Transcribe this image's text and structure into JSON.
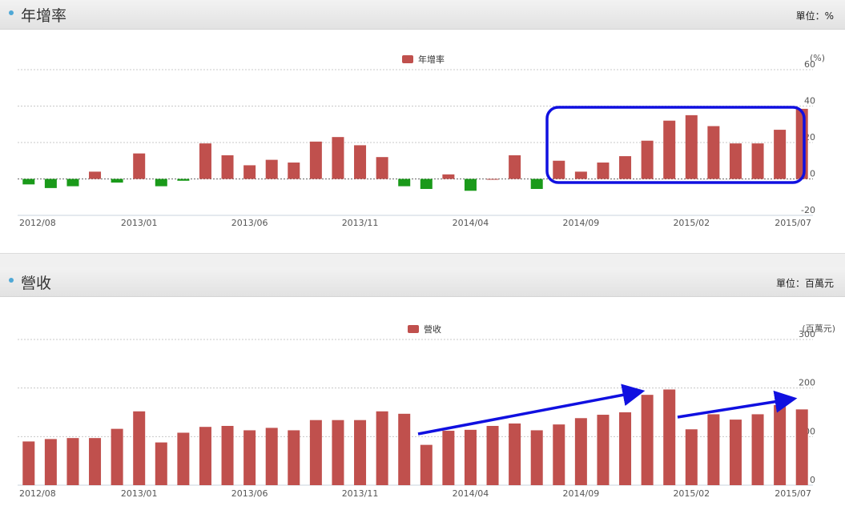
{
  "panels": {
    "growth": {
      "title": "年增率",
      "unit": "單位：%"
    },
    "revenue": {
      "title": "營收",
      "unit": "單位：百萬元"
    }
  },
  "colors": {
    "bar_positive": "#c0504d",
    "bar_negative": "#1a9a1a",
    "annotation": "#1010e0"
  },
  "chart_data": [
    {
      "type": "bar",
      "legend": "年增率",
      "ylabel": "(%)",
      "ylim": [
        -20,
        60
      ],
      "yticks": [
        60,
        40,
        20,
        0,
        -20
      ],
      "x_tick_labels": [
        "2012/08",
        "2013/01",
        "2013/06",
        "2013/11",
        "2014/04",
        "2014/09",
        "2015/02",
        "2015/07"
      ],
      "categories": [
        "2012/08",
        "2012/09",
        "2012/10",
        "2012/11",
        "2012/12",
        "2013/01",
        "2013/02",
        "2013/03",
        "2013/04",
        "2013/05",
        "2013/06",
        "2013/07",
        "2013/08",
        "2013/09",
        "2013/10",
        "2013/11",
        "2013/12",
        "2014/01",
        "2014/02",
        "2014/03",
        "2014/04",
        "2014/05",
        "2014/06",
        "2014/07",
        "2014/08",
        "2014/09",
        "2014/10",
        "2014/11",
        "2014/12",
        "2015/01",
        "2015/02",
        "2015/03",
        "2015/04",
        "2015/05",
        "2015/06",
        "2015/07"
      ],
      "values": [
        -3,
        -5,
        -4,
        4,
        -2,
        14,
        -4,
        -1,
        19.5,
        13,
        7.5,
        10.5,
        9,
        20.5,
        23,
        18.5,
        12,
        -4,
        -5.5,
        2.5,
        -6.5,
        0,
        13,
        -5.5,
        10,
        4,
        9,
        12.5,
        21,
        32,
        35,
        29,
        19.5,
        19.5,
        27,
        38.5
      ]
    },
    {
      "type": "bar",
      "legend": "營收",
      "ylabel": "(百萬元)",
      "ylim": [
        0,
        300
      ],
      "yticks": [
        300,
        200,
        100,
        0
      ],
      "x_tick_labels": [
        "2012/08",
        "2013/01",
        "2013/06",
        "2013/11",
        "2014/04",
        "2014/09",
        "2015/02",
        "2015/07"
      ],
      "categories": [
        "2012/08",
        "2012/09",
        "2012/10",
        "2012/11",
        "2012/12",
        "2013/01",
        "2013/02",
        "2013/03",
        "2013/04",
        "2013/05",
        "2013/06",
        "2013/07",
        "2013/08",
        "2013/09",
        "2013/10",
        "2013/11",
        "2013/12",
        "2014/01",
        "2014/02",
        "2014/03",
        "2014/04",
        "2014/05",
        "2014/06",
        "2014/07",
        "2014/08",
        "2014/09",
        "2014/10",
        "2014/11",
        "2014/12",
        "2015/01",
        "2015/02",
        "2015/03",
        "2015/04",
        "2015/05",
        "2015/06",
        "2015/07"
      ],
      "values": [
        90,
        95,
        97,
        97,
        116,
        152,
        88,
        108,
        120,
        122,
        113,
        118,
        113,
        134,
        134,
        134,
        152,
        147,
        83,
        112,
        114,
        122,
        127,
        113,
        125,
        138,
        145,
        150,
        186,
        197,
        115,
        146,
        135,
        146,
        165,
        156
      ]
    }
  ]
}
